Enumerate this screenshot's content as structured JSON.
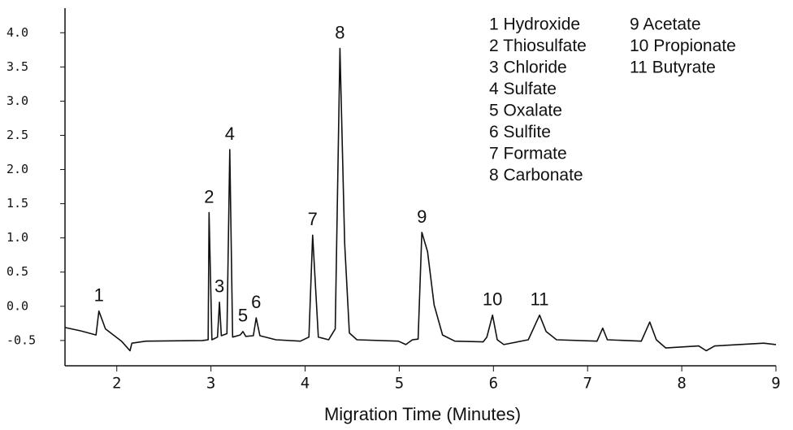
{
  "chart_data": {
    "type": "line",
    "x_label": "Migration Time  (Minutes)",
    "xlim": [
      1.45,
      9.0
    ],
    "ylim": [
      -0.87,
      4.36
    ],
    "xticks": [
      2,
      3,
      4,
      5,
      6,
      7,
      8,
      9
    ],
    "yticks": [
      -0.5,
      {
        "value": 0,
        "label": "0.0"
      },
      0.5,
      {
        "value": 1,
        "label": "1.0"
      },
      1.5,
      {
        "value": 2,
        "label": "2.0"
      },
      2.5,
      {
        "value": 3,
        "label": "3.0"
      },
      3.5,
      {
        "value": 4,
        "label": "4.0"
      }
    ],
    "color": "#111111",
    "x": [
      1.45,
      1.62,
      1.78,
      1.81,
      1.88,
      2.05,
      2.14,
      2.16,
      2.31,
      2.91,
      2.97,
      2.98,
      3.01,
      3.07,
      3.09,
      3.11,
      3.17,
      3.2,
      3.23,
      3.31,
      3.34,
      3.37,
      3.45,
      3.48,
      3.52,
      3.69,
      3.95,
      4.04,
      4.08,
      4.14,
      4.25,
      4.32,
      4.37,
      4.42,
      4.47,
      4.55,
      4.99,
      5.07,
      5.14,
      5.2,
      5.24,
      5.3,
      5.37,
      5.46,
      5.59,
      5.89,
      5.93,
      5.99,
      6.04,
      6.11,
      6.37,
      6.49,
      6.56,
      6.67,
      7.1,
      7.16,
      7.21,
      7.57,
      7.66,
      7.73,
      7.83,
      8.18,
      8.26,
      8.35,
      8.87,
      9.0
    ],
    "values": [
      -0.31,
      -0.36,
      -0.42,
      -0.07,
      -0.33,
      -0.51,
      -0.65,
      -0.54,
      -0.51,
      -0.5,
      -0.49,
      1.37,
      -0.49,
      -0.45,
      0.06,
      -0.43,
      -0.4,
      2.29,
      -0.45,
      -0.42,
      -0.37,
      -0.44,
      -0.43,
      -0.17,
      -0.43,
      -0.49,
      -0.51,
      -0.45,
      1.04,
      -0.45,
      -0.49,
      -0.33,
      3.77,
      0.92,
      -0.39,
      -0.49,
      -0.51,
      -0.56,
      -0.49,
      -0.48,
      1.08,
      0.8,
      0.02,
      -0.42,
      -0.51,
      -0.52,
      -0.45,
      -0.13,
      -0.49,
      -0.56,
      -0.49,
      -0.13,
      -0.37,
      -0.49,
      -0.51,
      -0.32,
      -0.49,
      -0.51,
      -0.23,
      -0.49,
      -0.61,
      -0.58,
      -0.65,
      -0.58,
      -0.54,
      -0.56
    ],
    "peak_labels": [
      {
        "label": "1",
        "x": 1.81,
        "y": -0.07
      },
      {
        "label": "2",
        "x": 2.98,
        "y": 1.37
      },
      {
        "label": "3",
        "x": 3.09,
        "y": 0.06
      },
      {
        "label": "4",
        "x": 3.2,
        "y": 2.29
      },
      {
        "label": "5",
        "x": 3.34,
        "y": -0.37
      },
      {
        "label": "6",
        "x": 3.48,
        "y": -0.17
      },
      {
        "label": "7",
        "x": 4.08,
        "y": 1.04
      },
      {
        "label": "8",
        "x": 4.37,
        "y": 3.77
      },
      {
        "label": "9",
        "x": 5.24,
        "y": 1.08
      },
      {
        "label": "10",
        "x": 5.99,
        "y": -0.13
      },
      {
        "label": "11",
        "x": 6.49,
        "y": -0.13
      }
    ],
    "legend": [
      "1 Hydroxide",
      "2 Thiosulfate",
      "3 Chloride",
      "4 Sulfate",
      "5 Oxalate",
      "6 Sulfite",
      "7 Formate",
      "8 Carbonate",
      "9 Acetate",
      "10 Propionate",
      "11 Butyrate"
    ]
  }
}
